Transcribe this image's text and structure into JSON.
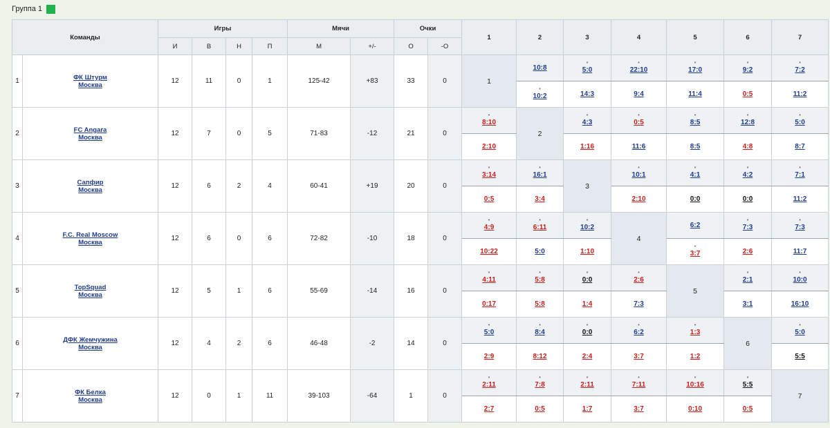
{
  "group": {
    "title": "Группа 1",
    "color": "#22b24c"
  },
  "headers": {
    "teams": "Команды",
    "games": "Игры",
    "balls": "Мячи",
    "points": "Очки",
    "sub": [
      "И",
      "В",
      "Н",
      "П",
      "М",
      "+/-",
      "О",
      "-О"
    ],
    "cols": [
      "1",
      "2",
      "3",
      "4",
      "5",
      "6",
      "7"
    ]
  },
  "teams": [
    {
      "rank": "1",
      "name": "ФК Штурм",
      "city": "Москва",
      "i": "12",
      "w": "11",
      "d": "0",
      "l": "1",
      "m": "125-42",
      "diff": "+83",
      "pts": "33",
      "minus": "0",
      "results": [
        null,
        {
          "top": {
            "s": "10:8",
            "c": "blue",
            "star": false
          },
          "bot": {
            "s": "10:2",
            "c": "blue",
            "star": true
          }
        },
        {
          "top": {
            "s": "5:0",
            "c": "blue",
            "star": true
          },
          "bot": {
            "s": "14:3",
            "c": "blue",
            "star": false
          }
        },
        {
          "top": {
            "s": "22:10",
            "c": "blue",
            "star": true
          },
          "bot": {
            "s": "9:4",
            "c": "blue",
            "star": false
          }
        },
        {
          "top": {
            "s": "17:0",
            "c": "blue",
            "star": true
          },
          "bot": {
            "s": "11:4",
            "c": "blue",
            "star": false
          }
        },
        {
          "top": {
            "s": "9:2",
            "c": "blue",
            "star": true
          },
          "bot": {
            "s": "0:5",
            "c": "red",
            "star": false
          }
        },
        {
          "top": {
            "s": "7:2",
            "c": "blue",
            "star": true
          },
          "bot": {
            "s": "11:2",
            "c": "blue",
            "star": false
          }
        }
      ]
    },
    {
      "rank": "2",
      "name": "FC Angara",
      "city": "Москва",
      "i": "12",
      "w": "7",
      "d": "0",
      "l": "5",
      "m": "71-83",
      "diff": "-12",
      "pts": "21",
      "minus": "0",
      "results": [
        {
          "top": {
            "s": "8:10",
            "c": "red",
            "star": true
          },
          "bot": {
            "s": "2:10",
            "c": "red",
            "star": false
          }
        },
        null,
        {
          "top": {
            "s": "4:3",
            "c": "blue",
            "star": true
          },
          "bot": {
            "s": "1:16",
            "c": "red",
            "star": false
          }
        },
        {
          "top": {
            "s": "0:5",
            "c": "red",
            "star": true
          },
          "bot": {
            "s": "11:6",
            "c": "blue",
            "star": false
          }
        },
        {
          "top": {
            "s": "8:5",
            "c": "blue",
            "star": true
          },
          "bot": {
            "s": "8:5",
            "c": "blue",
            "star": false
          }
        },
        {
          "top": {
            "s": "12:8",
            "c": "blue",
            "star": true
          },
          "bot": {
            "s": "4:8",
            "c": "red",
            "star": false
          }
        },
        {
          "top": {
            "s": "5:0",
            "c": "blue",
            "star": true
          },
          "bot": {
            "s": "8:7",
            "c": "blue",
            "star": false
          }
        }
      ]
    },
    {
      "rank": "3",
      "name": "Сапфир",
      "city": "Москва",
      "i": "12",
      "w": "6",
      "d": "2",
      "l": "4",
      "m": "60-41",
      "diff": "+19",
      "pts": "20",
      "minus": "0",
      "results": [
        {
          "top": {
            "s": "3:14",
            "c": "red",
            "star": true
          },
          "bot": {
            "s": "0:5",
            "c": "red",
            "star": false
          }
        },
        {
          "top": {
            "s": "16:1",
            "c": "blue",
            "star": true
          },
          "bot": {
            "s": "3:4",
            "c": "red",
            "star": false
          }
        },
        null,
        {
          "top": {
            "s": "10:1",
            "c": "blue",
            "star": true
          },
          "bot": {
            "s": "2:10",
            "c": "red",
            "star": false
          }
        },
        {
          "top": {
            "s": "4:1",
            "c": "blue",
            "star": true
          },
          "bot": {
            "s": "0:0",
            "c": "black",
            "star": false
          }
        },
        {
          "top": {
            "s": "4:2",
            "c": "blue",
            "star": true
          },
          "bot": {
            "s": "0:0",
            "c": "black",
            "star": false
          }
        },
        {
          "top": {
            "s": "7:1",
            "c": "blue",
            "star": true
          },
          "bot": {
            "s": "11:2",
            "c": "blue",
            "star": false
          }
        }
      ]
    },
    {
      "rank": "4",
      "name": "F.C. Real Moscow",
      "city": "Москва",
      "i": "12",
      "w": "6",
      "d": "0",
      "l": "6",
      "m": "72-82",
      "diff": "-10",
      "pts": "18",
      "minus": "0",
      "results": [
        {
          "top": {
            "s": "4:9",
            "c": "red",
            "star": true
          },
          "bot": {
            "s": "10:22",
            "c": "red",
            "star": false
          }
        },
        {
          "top": {
            "s": "6:11",
            "c": "red",
            "star": true
          },
          "bot": {
            "s": "5:0",
            "c": "blue",
            "star": false
          }
        },
        {
          "top": {
            "s": "10:2",
            "c": "blue",
            "star": true
          },
          "bot": {
            "s": "1:10",
            "c": "red",
            "star": false
          }
        },
        null,
        {
          "top": {
            "s": "6:2",
            "c": "blue",
            "star": false
          },
          "bot": {
            "s": "3:7",
            "c": "red",
            "star": true
          }
        },
        {
          "top": {
            "s": "7:3",
            "c": "blue",
            "star": true
          },
          "bot": {
            "s": "2:6",
            "c": "red",
            "star": false
          }
        },
        {
          "top": {
            "s": "7:3",
            "c": "blue",
            "star": true
          },
          "bot": {
            "s": "11:7",
            "c": "blue",
            "star": false
          }
        }
      ]
    },
    {
      "rank": "5",
      "name": "TopSquad",
      "city": "Москва",
      "i": "12",
      "w": "5",
      "d": "1",
      "l": "6",
      "m": "55-69",
      "diff": "-14",
      "pts": "16",
      "minus": "0",
      "results": [
        {
          "top": {
            "s": "4:11",
            "c": "red",
            "star": true
          },
          "bot": {
            "s": "0:17",
            "c": "red",
            "star": false
          }
        },
        {
          "top": {
            "s": "5:8",
            "c": "red",
            "star": true
          },
          "bot": {
            "s": "5:8",
            "c": "red",
            "star": false
          }
        },
        {
          "top": {
            "s": "0:0",
            "c": "black",
            "star": true
          },
          "bot": {
            "s": "1:4",
            "c": "red",
            "star": false
          }
        },
        {
          "top": {
            "s": "2:6",
            "c": "red",
            "star": true
          },
          "bot": {
            "s": "7:3",
            "c": "blue",
            "star": false
          }
        },
        null,
        {
          "top": {
            "s": "2:1",
            "c": "blue",
            "star": true
          },
          "bot": {
            "s": "3:1",
            "c": "blue",
            "star": false
          }
        },
        {
          "top": {
            "s": "10:0",
            "c": "blue",
            "star": true
          },
          "bot": {
            "s": "16:10",
            "c": "blue",
            "star": false
          }
        }
      ]
    },
    {
      "rank": "6",
      "name": "ДФК Жемчужина",
      "city": "Москва",
      "i": "12",
      "w": "4",
      "d": "2",
      "l": "6",
      "m": "46-48",
      "diff": "-2",
      "pts": "14",
      "minus": "0",
      "results": [
        {
          "top": {
            "s": "5:0",
            "c": "blue",
            "star": true
          },
          "bot": {
            "s": "2:9",
            "c": "red",
            "star": false
          }
        },
        {
          "top": {
            "s": "8:4",
            "c": "blue",
            "star": true
          },
          "bot": {
            "s": "8:12",
            "c": "red",
            "star": false
          }
        },
        {
          "top": {
            "s": "0:0",
            "c": "black",
            "star": true
          },
          "bot": {
            "s": "2:4",
            "c": "red",
            "star": false
          }
        },
        {
          "top": {
            "s": "6:2",
            "c": "blue",
            "star": true
          },
          "bot": {
            "s": "3:7",
            "c": "red",
            "star": false
          }
        },
        {
          "top": {
            "s": "1:3",
            "c": "red",
            "star": true
          },
          "bot": {
            "s": "1:2",
            "c": "red",
            "star": false
          }
        },
        null,
        {
          "top": {
            "s": "5:0",
            "c": "blue",
            "star": true
          },
          "bot": {
            "s": "5:5",
            "c": "black",
            "star": false
          }
        }
      ]
    },
    {
      "rank": "7",
      "name": "ФК Белка",
      "city": "Москва",
      "i": "12",
      "w": "0",
      "d": "1",
      "l": "11",
      "m": "39-103",
      "diff": "-64",
      "pts": "1",
      "minus": "0",
      "results": [
        {
          "top": {
            "s": "2:11",
            "c": "red",
            "star": true
          },
          "bot": {
            "s": "2:7",
            "c": "red",
            "star": false
          }
        },
        {
          "top": {
            "s": "7:8",
            "c": "red",
            "star": true
          },
          "bot": {
            "s": "0:5",
            "c": "red",
            "star": false
          }
        },
        {
          "top": {
            "s": "2:11",
            "c": "red",
            "star": true
          },
          "bot": {
            "s": "1:7",
            "c": "red",
            "star": false
          }
        },
        {
          "top": {
            "s": "7:11",
            "c": "red",
            "star": true
          },
          "bot": {
            "s": "3:7",
            "c": "red",
            "star": false
          }
        },
        {
          "top": {
            "s": "10:16",
            "c": "red",
            "star": true
          },
          "bot": {
            "s": "0:10",
            "c": "red",
            "star": false
          }
        },
        {
          "top": {
            "s": "5:5",
            "c": "black",
            "star": true
          },
          "bot": {
            "s": "0:5",
            "c": "red",
            "star": false
          }
        },
        null
      ]
    }
  ]
}
